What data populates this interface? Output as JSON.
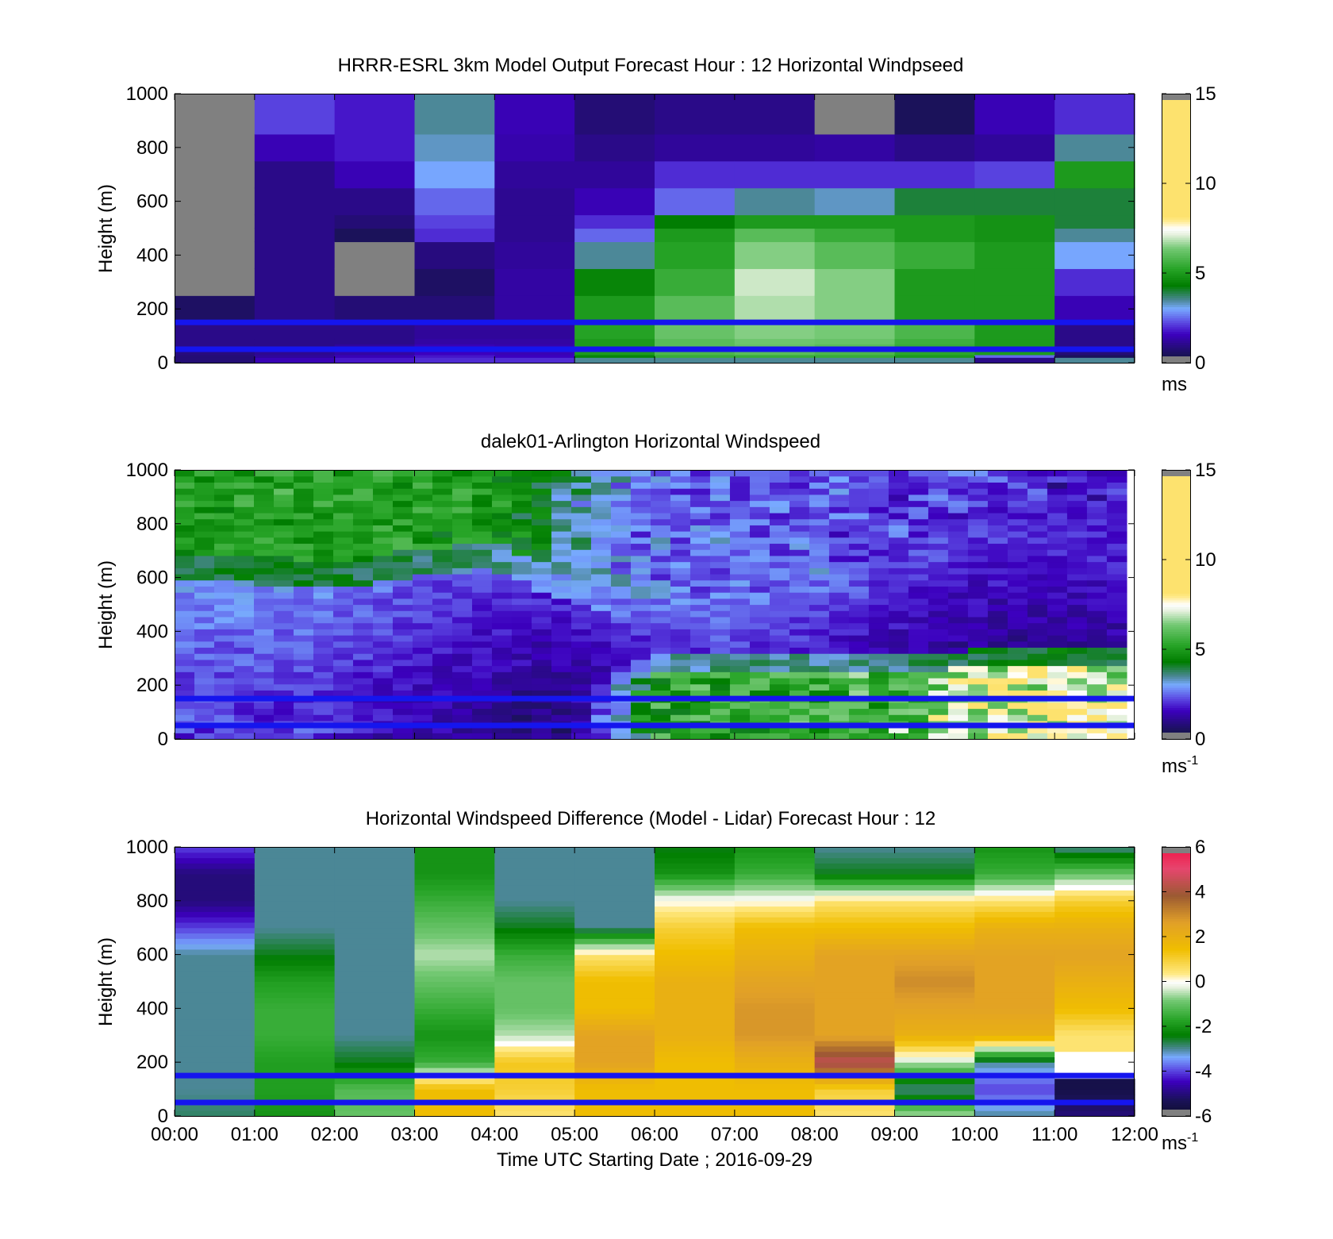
{
  "figure": {
    "xlabel": "Time UTC  Starting Date ; 2016-09-29",
    "x_ticks": [
      "00:00",
      "01:00",
      "02:00",
      "03:00",
      "04:00",
      "05:00",
      "06:00",
      "07:00",
      "08:00",
      "09:00",
      "10:00",
      "11:00",
      "12:00"
    ]
  },
  "chart_data": [
    {
      "type": "heatmap",
      "title": "HRRR-ESRL 3km Model Output   Forecast Hour : 12 Horizontal Windpseed",
      "ylabel": "Height (m)",
      "y_ticks": [
        "0",
        "200",
        "400",
        "600",
        "800",
        "1000"
      ],
      "ylim": [
        0,
        1000
      ],
      "xlim_hours": [
        0,
        12
      ],
      "colorbar": {
        "ticks": [
          "0",
          "5",
          "10",
          "15"
        ],
        "range": [
          0,
          15
        ],
        "unit": "ms"
      },
      "reference_lines_m": [
        50,
        150
      ],
      "reference_line_color": "#1515ee",
      "row_edges_m": [
        0,
        20,
        30,
        50,
        70,
        90,
        150,
        250,
        350,
        450,
        500,
        550,
        650,
        750,
        850,
        1000
      ],
      "columns": [
        {
          "hour": "00:00",
          "speed": [
            0.8,
            0.8,
            0.9,
            1.0,
            1.0,
            1.0,
            0.6,
            null,
            null,
            null,
            null,
            null,
            null,
            null,
            null
          ]
        },
        {
          "hour": "01:00",
          "speed": [
            1.5,
            1.2,
            1.1,
            1.0,
            1.0,
            1.0,
            1.0,
            1.0,
            1.0,
            1.0,
            1.0,
            1.0,
            1.0,
            1.5,
            2.2
          ]
        },
        {
          "hour": "02:00",
          "speed": [
            1.8,
            1.5,
            1.3,
            1.2,
            1.0,
            1.0,
            0.8,
            null,
            null,
            0.5,
            0.8,
            1.0,
            1.5,
            1.8,
            1.8
          ]
        },
        {
          "hour": "03:00",
          "speed": [
            2.0,
            1.8,
            1.6,
            1.5,
            1.3,
            1.2,
            0.8,
            0.6,
            0.9,
            2.0,
            2.2,
            2.5,
            3.0,
            3.3,
            3.5
          ]
        },
        {
          "hour": "04:00",
          "speed": [
            2.0,
            1.6,
            1.5,
            1.4,
            1.3,
            1.2,
            1.3,
            1.3,
            1.2,
            1.1,
            1.1,
            1.1,
            1.2,
            1.4,
            1.5
          ]
        },
        {
          "hour": "05:00",
          "speed": [
            3.5,
            4.5,
            5.0,
            5.0,
            5.0,
            5.2,
            5.0,
            4.5,
            3.5,
            2.5,
            2.0,
            1.5,
            1.2,
            1.0,
            0.8
          ]
        },
        {
          "hour": "06:00",
          "speed": [
            3.5,
            5.5,
            5.8,
            6.0,
            6.0,
            6.2,
            6.0,
            5.5,
            5.2,
            5.0,
            4.3,
            2.5,
            2.0,
            1.2,
            1.0
          ]
        },
        {
          "hour": "07:00",
          "speed": [
            3.5,
            5.5,
            6.0,
            6.2,
            6.3,
            6.5,
            6.8,
            7.0,
            6.5,
            6.0,
            5.0,
            3.5,
            2.0,
            1.2,
            1.0
          ]
        },
        {
          "hour": "08:00",
          "speed": [
            3.5,
            5.5,
            5.8,
            6.0,
            6.2,
            6.4,
            6.5,
            6.5,
            6.0,
            5.5,
            5.0,
            3.3,
            2.0,
            1.3,
            null
          ]
        },
        {
          "hour": "09:00",
          "speed": [
            3.5,
            5.0,
            5.3,
            5.5,
            5.6,
            5.8,
            5.0,
            5.0,
            5.5,
            5.0,
            5.0,
            4.0,
            2.0,
            1.0,
            0.5
          ]
        },
        {
          "hour": "10:00",
          "speed": [
            1.0,
            2.5,
            5.0,
            5.0,
            5.0,
            5.0,
            5.0,
            5.0,
            5.0,
            4.8,
            4.8,
            4.0,
            2.2,
            1.2,
            1.5
          ]
        },
        {
          "hour": "11:00",
          "speed": [
            3.5,
            0.5,
            0.8,
            1.0,
            1.0,
            1.0,
            1.5,
            2.0,
            3.0,
            3.5,
            4.0,
            4.0,
            5.0,
            3.5,
            2.0
          ]
        }
      ]
    },
    {
      "type": "heatmap",
      "title": "dalek01-Arlington  Horizontal Windspeed",
      "ylabel": "Height (m)",
      "y_ticks": [
        "0",
        "200",
        "400",
        "600",
        "800",
        "1000"
      ],
      "ylim": [
        0,
        1000
      ],
      "xlim_hours": [
        0,
        12
      ],
      "data_extent_hours": [
        0,
        11.9
      ],
      "colorbar": {
        "ticks": [
          "0",
          "5",
          "10",
          "15"
        ],
        "range": [
          0,
          15
        ],
        "unit": "ms",
        "unit_exponent": "-1"
      },
      "reference_lines_m": [
        50,
        150
      ],
      "reference_line_color": "#1515ee",
      "description_points": {
        "hours": [
          0,
          1,
          2,
          3,
          4,
          5,
          6,
          7,
          8,
          9,
          10,
          11,
          12
        ],
        "low_jet_speed_ms": [
          2.5,
          2.0,
          2.0,
          1.5,
          1.0,
          1.0,
          5.0,
          5.5,
          5.5,
          6.0,
          7.0,
          7.5,
          7.0
        ],
        "low_jet_top_m": [
          100,
          100,
          100,
          100,
          100,
          150,
          250,
          250,
          250,
          250,
          270,
          280,
          280
        ],
        "mid_layer_speed_ms": [
          2.0,
          2.0,
          1.8,
          1.5,
          1.2,
          1.0,
          1.5,
          1.8,
          1.5,
          1.2,
          1.0,
          1.0,
          1.2
        ],
        "upper_boundary_m": [
          650,
          630,
          610,
          650,
          680,
          550,
          450,
          480,
          550,
          650,
          720,
          800,
          880
        ],
        "upper_speed_ms": [
          5.0,
          5.2,
          5.3,
          5.0,
          5.0,
          3.5,
          2.5,
          2.5,
          2.5,
          2.2,
          2.2,
          1.8,
          1.5
        ]
      }
    },
    {
      "type": "heatmap",
      "title": "Horizontal Windspeed Difference (Model - Lidar) Forecast Hour : 12",
      "ylabel": "Height (m)",
      "y_ticks": [
        "0",
        "200",
        "400",
        "600",
        "800",
        "1000"
      ],
      "ylim": [
        0,
        1000
      ],
      "xlim_hours": [
        0,
        12
      ],
      "colorbar": {
        "ticks": [
          "-6",
          "-4",
          "-2",
          "0",
          "2",
          "4",
          "6"
        ],
        "range": [
          -6,
          6
        ],
        "unit": "ms",
        "unit_exponent": "-1"
      },
      "reference_lines_m": [
        50,
        150
      ],
      "reference_line_color": "#1515ee",
      "profile_heights_m": [
        0,
        100,
        200,
        300,
        400,
        500,
        600,
        700,
        800,
        900,
        1000
      ],
      "columns": [
        {
          "hour": "00:00",
          "diff": [
            -2.8,
            -3.0,
            -3.0,
            -3.0,
            -3.0,
            -3.0,
            -3.0,
            -4.0,
            -5.0,
            -5.0,
            -4.0
          ]
        },
        {
          "hour": "01:00",
          "diff": [
            -2.0,
            -1.8,
            -1.8,
            -1.5,
            -1.5,
            -1.8,
            -2.5,
            -3.0,
            -3.0,
            -3.0,
            -3.0
          ]
        },
        {
          "hour": "02:00",
          "diff": [
            -1.0,
            -1.2,
            -2.5,
            -3.0,
            -3.0,
            -3.0,
            -3.0,
            -3.0,
            -3.0,
            -3.0,
            -3.0
          ]
        },
        {
          "hour": "03:00",
          "diff": [
            1.5,
            1.5,
            -1.5,
            -2.0,
            -1.5,
            -1.0,
            -0.5,
            -1.0,
            -1.5,
            -2.0,
            -2.0
          ]
        },
        {
          "hour": "04:00",
          "diff": [
            0.5,
            1.0,
            1.2,
            -0.5,
            -1.0,
            -1.0,
            -1.5,
            -2.5,
            -3.0,
            -3.0,
            -3.0
          ]
        },
        {
          "hour": "05:00",
          "diff": [
            1.5,
            1.5,
            2.5,
            2.5,
            1.5,
            1.5,
            0.5,
            -3.0,
            -3.0,
            -3.0,
            -3.0
          ]
        },
        {
          "hour": "06:00",
          "diff": [
            1.5,
            1.5,
            1.5,
            2.0,
            2.0,
            2.0,
            1.5,
            1.0,
            0.0,
            -2.0,
            -2.5
          ]
        },
        {
          "hour": "07:00",
          "diff": [
            1.5,
            1.5,
            2.0,
            2.8,
            2.8,
            2.5,
            2.0,
            1.5,
            0.0,
            -1.5,
            -2.0
          ]
        },
        {
          "hour": "08:00",
          "diff": [
            0.5,
            1.0,
            4.5,
            2.5,
            2.5,
            2.5,
            2.5,
            1.5,
            0.5,
            -2.5,
            -3.0
          ]
        },
        {
          "hour": "09:00",
          "diff": [
            -0.5,
            -3.0,
            -0.5,
            2.0,
            2.5,
            3.0,
            2.5,
            1.5,
            0.5,
            -2.5,
            -3.0
          ]
        },
        {
          "hour": "10:00",
          "diff": [
            -3.0,
            -4.0,
            -3.0,
            2.0,
            2.5,
            2.5,
            2.5,
            2.0,
            0.5,
            -1.5,
            -2.0
          ]
        },
        {
          "hour": "11:00",
          "diff": [
            -5.0,
            -5.5,
            null,
            0.5,
            1.5,
            2.0,
            2.5,
            2.0,
            1.0,
            -1.0,
            -3.0
          ]
        }
      ]
    }
  ]
}
